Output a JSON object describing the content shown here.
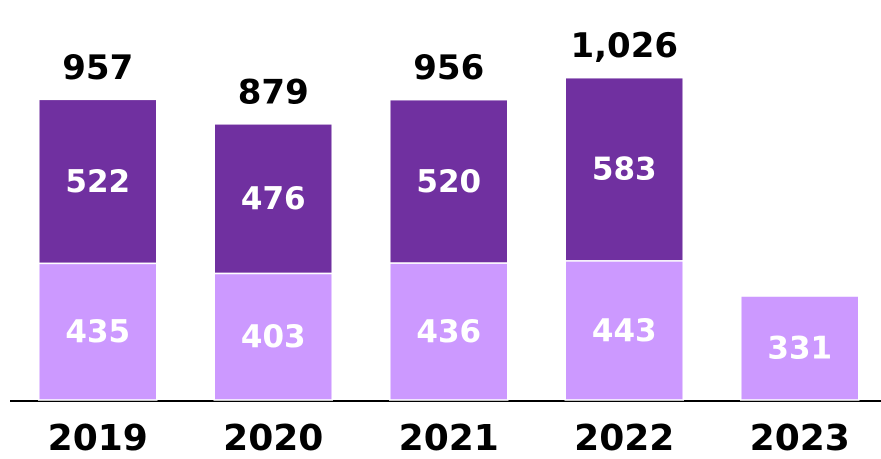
{
  "chart_data": {
    "type": "stacked_bar",
    "categories": [
      "2019",
      "2020",
      "2021",
      "2022",
      "2023"
    ],
    "series": [
      {
        "color": "#cc99ff",
        "values": [
          435,
          403,
          436,
          443,
          331
        ]
      },
      {
        "color": "#7030a0",
        "values": [
          522,
          476,
          520,
          583,
          null
        ]
      }
    ],
    "totals": {
      "values": [
        957,
        879,
        956,
        1026,
        null
      ],
      "value_labels": [
        "957",
        "879",
        "956",
        "1,026",
        null
      ]
    },
    "ylim": [
      0,
      1200
    ]
  }
}
